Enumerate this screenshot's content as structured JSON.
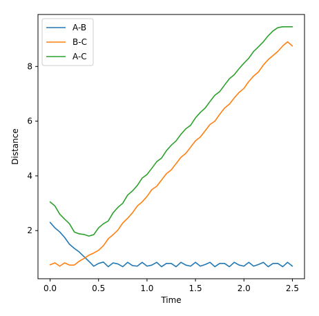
{
  "chart_data": {
    "type": "line",
    "title": "",
    "xlabel": "Time",
    "ylabel": "Distance",
    "xlim": [
      -0.125,
      2.625
    ],
    "ylim": [
      0.24,
      9.9
    ],
    "xticks": [
      0.0,
      0.5,
      1.0,
      1.5,
      2.0,
      2.5
    ],
    "xtick_labels": [
      "0.0",
      "0.5",
      "1.0",
      "1.5",
      "2.0",
      "2.5"
    ],
    "yticks": [
      2,
      4,
      6,
      8
    ],
    "ytick_labels": [
      "2",
      "4",
      "6",
      "8"
    ],
    "grid": false,
    "legend": "top-left",
    "series": [
      {
        "name": "A-B",
        "color": "#1f77b4",
        "x": [
          0.0,
          0.05,
          0.1,
          0.15,
          0.2,
          0.25,
          0.3,
          0.35,
          0.4,
          0.45,
          0.5,
          0.55,
          0.6,
          0.65,
          0.7,
          0.75,
          0.8,
          0.85,
          0.9,
          0.95,
          1.0,
          1.05,
          1.1,
          1.15,
          1.2,
          1.25,
          1.3,
          1.35,
          1.4,
          1.45,
          1.5,
          1.55,
          1.6,
          1.65,
          1.7,
          1.75,
          1.8,
          1.85,
          1.9,
          1.95,
          2.0,
          2.05,
          2.1,
          2.15,
          2.2,
          2.25,
          2.3,
          2.35,
          2.4,
          2.45,
          2.5
        ],
        "y": [
          2.3,
          2.1,
          1.95,
          1.75,
          1.5,
          1.35,
          1.22,
          1.05,
          0.88,
          0.7,
          0.8,
          0.85,
          0.68,
          0.82,
          0.78,
          0.68,
          0.84,
          0.72,
          0.7,
          0.84,
          0.7,
          0.74,
          0.84,
          0.68,
          0.8,
          0.8,
          0.68,
          0.84,
          0.74,
          0.7,
          0.84,
          0.7,
          0.76,
          0.84,
          0.68,
          0.8,
          0.8,
          0.68,
          0.84,
          0.74,
          0.7,
          0.84,
          0.7,
          0.76,
          0.84,
          0.68,
          0.8,
          0.8,
          0.68,
          0.84,
          0.7
        ]
      },
      {
        "name": "B-C",
        "color": "#ff7f0e",
        "x": [
          0.0,
          0.05,
          0.1,
          0.15,
          0.2,
          0.25,
          0.3,
          0.35,
          0.4,
          0.45,
          0.5,
          0.55,
          0.6,
          0.65,
          0.7,
          0.75,
          0.8,
          0.85,
          0.9,
          0.95,
          1.0,
          1.05,
          1.1,
          1.15,
          1.2,
          1.25,
          1.3,
          1.35,
          1.4,
          1.45,
          1.5,
          1.55,
          1.6,
          1.65,
          1.7,
          1.75,
          1.8,
          1.85,
          1.9,
          1.95,
          2.0,
          2.05,
          2.1,
          2.15,
          2.2,
          2.25,
          2.3,
          2.35,
          2.4,
          2.45,
          2.5
        ],
        "y": [
          0.75,
          0.82,
          0.7,
          0.82,
          0.74,
          0.74,
          0.88,
          0.98,
          1.1,
          1.18,
          1.28,
          1.45,
          1.7,
          1.85,
          2.02,
          2.28,
          2.45,
          2.65,
          2.9,
          3.05,
          3.25,
          3.5,
          3.62,
          3.85,
          4.08,
          4.22,
          4.45,
          4.68,
          4.82,
          5.05,
          5.28,
          5.42,
          5.65,
          5.88,
          6.0,
          6.25,
          6.48,
          6.62,
          6.85,
          7.05,
          7.2,
          7.45,
          7.65,
          7.8,
          8.05,
          8.25,
          8.4,
          8.55,
          8.75,
          8.9,
          8.75
        ]
      },
      {
        "name": "A-C",
        "color": "#2ca02c",
        "x": [
          0.0,
          0.05,
          0.1,
          0.15,
          0.2,
          0.25,
          0.3,
          0.35,
          0.4,
          0.45,
          0.5,
          0.55,
          0.6,
          0.65,
          0.7,
          0.75,
          0.8,
          0.85,
          0.9,
          0.95,
          1.0,
          1.05,
          1.1,
          1.15,
          1.2,
          1.25,
          1.3,
          1.35,
          1.4,
          1.45,
          1.5,
          1.55,
          1.6,
          1.65,
          1.7,
          1.75,
          1.8,
          1.85,
          1.9,
          1.95,
          2.0,
          2.05,
          2.1,
          2.15,
          2.2,
          2.25,
          2.3,
          2.35,
          2.4,
          2.45,
          2.5
        ],
        "y": [
          3.05,
          2.9,
          2.6,
          2.42,
          2.25,
          1.95,
          1.88,
          1.86,
          1.8,
          1.85,
          2.1,
          2.25,
          2.35,
          2.65,
          2.85,
          3.0,
          3.3,
          3.45,
          3.65,
          3.92,
          4.05,
          4.28,
          4.52,
          4.65,
          4.92,
          5.12,
          5.28,
          5.52,
          5.72,
          5.85,
          6.12,
          6.32,
          6.48,
          6.72,
          6.95,
          7.08,
          7.32,
          7.55,
          7.7,
          7.92,
          8.12,
          8.3,
          8.55,
          8.72,
          8.9,
          9.12,
          9.3,
          9.42,
          9.45,
          9.45,
          9.45
        ]
      }
    ]
  }
}
